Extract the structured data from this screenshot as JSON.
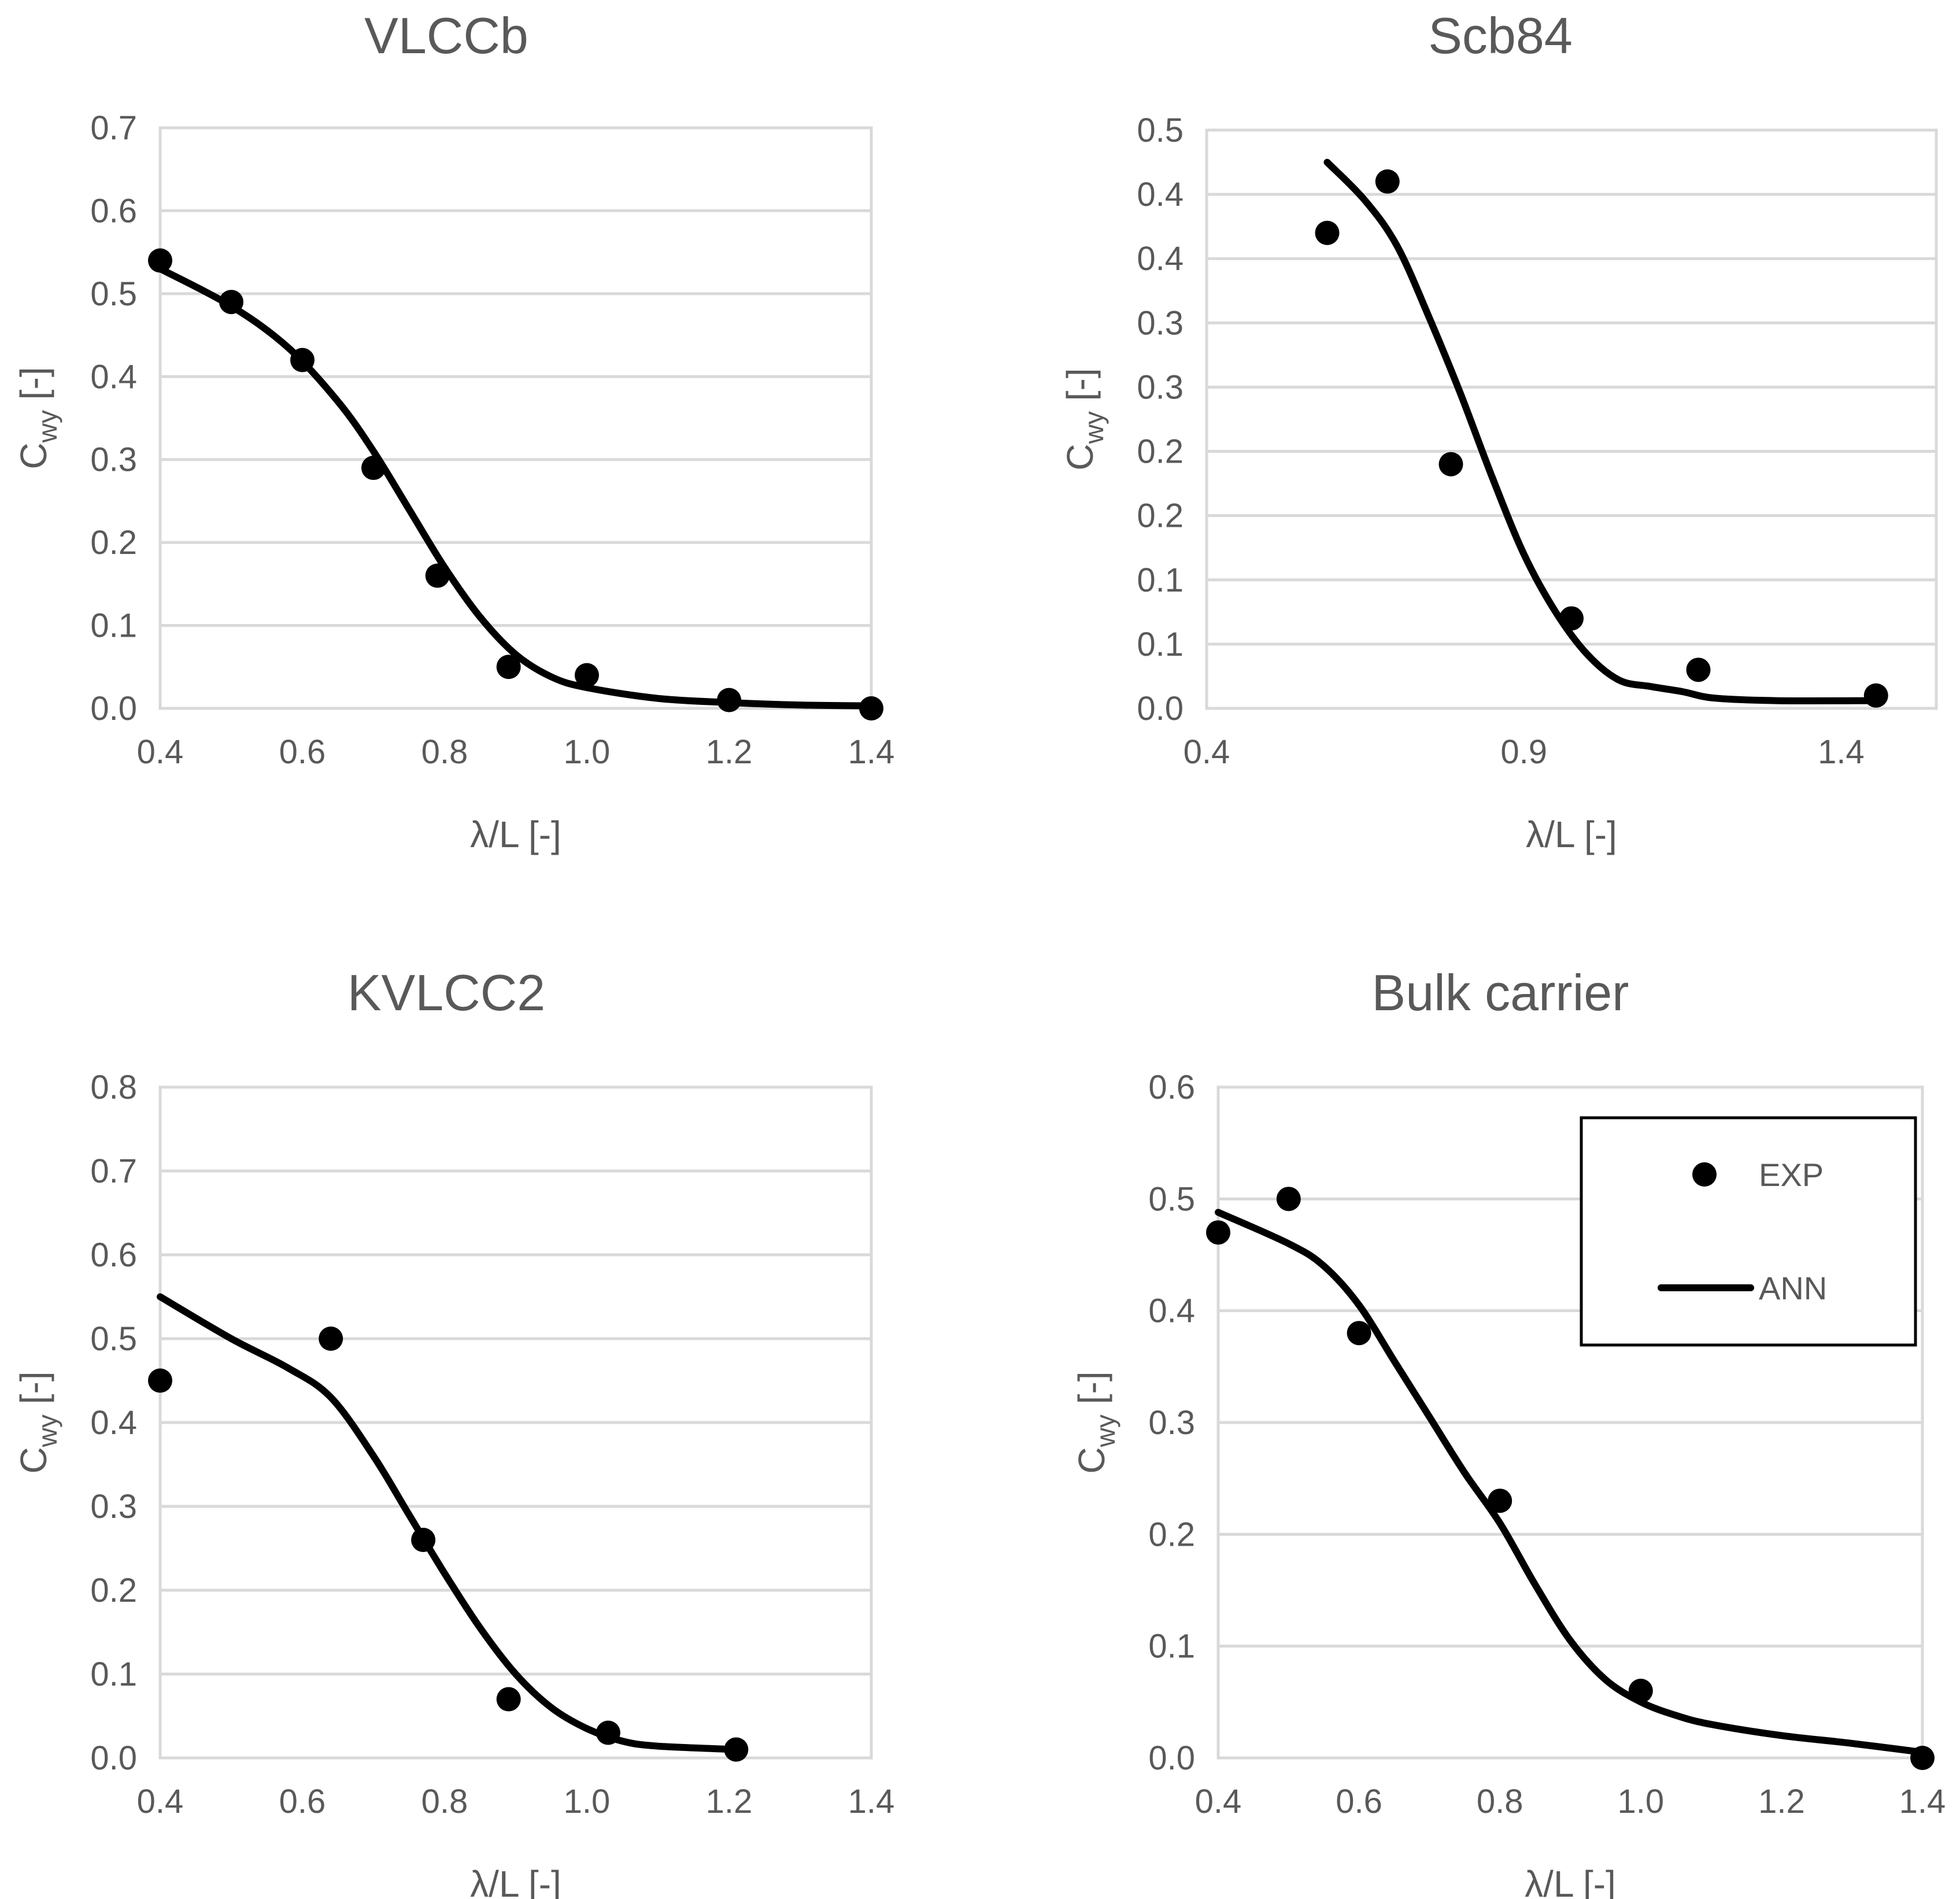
{
  "legend": {
    "exp_label": "EXP",
    "ann_label": "ANN"
  },
  "chart_data": [
    {
      "type": "scatter",
      "title": "VLCCb",
      "xlabel": "λ/L [-]",
      "ylabel_main": "C",
      "ylabel_sub": "wy",
      "ylabel_unit": " [-]",
      "xlim": [
        0.4,
        1.4
      ],
      "ylim": [
        0.0,
        0.7
      ],
      "xticks": [
        0.4,
        0.6,
        0.8,
        1.0,
        1.2,
        1.4
      ],
      "xtick_labels": [
        "0.4",
        "0.6",
        "0.8",
        "1.0",
        "1.2",
        "1.4"
      ],
      "yticks": [
        0.0,
        0.1,
        0.2,
        0.3,
        0.4,
        0.5,
        0.6,
        0.7
      ],
      "ytick_labels": [
        "0.0",
        "0.1",
        "0.2",
        "0.3",
        "0.4",
        "0.5",
        "0.6",
        "0.7"
      ],
      "series": [
        {
          "name": "EXP",
          "x": [
            0.4,
            0.5,
            0.6,
            0.7,
            0.79,
            0.89,
            1.0,
            1.2,
            1.4
          ],
          "y": [
            0.54,
            0.49,
            0.42,
            0.29,
            0.16,
            0.05,
            0.04,
            0.01,
            0.0
          ]
        },
        {
          "name": "ANN",
          "x": [
            0.4,
            0.5,
            0.58,
            0.65,
            0.7,
            0.75,
            0.8,
            0.85,
            0.9,
            0.95,
            1.0,
            1.1,
            1.2,
            1.3,
            1.4
          ],
          "y": [
            0.53,
            0.485,
            0.435,
            0.37,
            0.31,
            0.24,
            0.17,
            0.11,
            0.065,
            0.038,
            0.025,
            0.012,
            0.007,
            0.004,
            0.003
          ]
        }
      ]
    },
    {
      "type": "scatter",
      "title": "Scb84",
      "xlabel": "λ/L [-]",
      "ylabel_main": "C",
      "ylabel_sub": "wy",
      "ylabel_unit": " [-]",
      "xlim": [
        0.4,
        1.55
      ],
      "ylim": [
        0.0,
        0.45
      ],
      "xticks": [
        0.4,
        0.9,
        1.4
      ],
      "xtick_labels": [
        "0.4",
        "0.9",
        "1.4"
      ],
      "yticks": [
        0.0,
        0.05,
        0.1,
        0.15,
        0.2,
        0.25,
        0.3,
        0.35,
        0.4,
        0.45
      ],
      "ytick_labels": [
        "0.0",
        "0.1",
        "0.1",
        "0.2",
        "0.2",
        "0.3",
        "0.3",
        "0.4",
        "0.4",
        "0.5"
      ],
      "series": [
        {
          "name": "EXP",
          "x": [
            0.59,
            0.685,
            0.785,
            0.975,
            1.175,
            1.455
          ],
          "y": [
            0.37,
            0.41,
            0.19,
            0.07,
            0.03,
            0.01
          ]
        },
        {
          "name": "ANN",
          "x": [
            0.59,
            0.65,
            0.7,
            0.75,
            0.8,
            0.85,
            0.9,
            0.95,
            1.0,
            1.05,
            1.1,
            1.15,
            1.2,
            1.3,
            1.455
          ],
          "y": [
            0.425,
            0.395,
            0.36,
            0.305,
            0.245,
            0.18,
            0.12,
            0.075,
            0.042,
            0.022,
            0.017,
            0.013,
            0.008,
            0.006,
            0.006
          ]
        }
      ]
    },
    {
      "type": "scatter",
      "title": "KVLCC2",
      "xlabel": "λ/L [-]",
      "ylabel_main": "C",
      "ylabel_sub": "wy",
      "ylabel_unit": " [-]",
      "xlim": [
        0.4,
        1.4
      ],
      "ylim": [
        0.0,
        0.8
      ],
      "xticks": [
        0.4,
        0.6,
        0.8,
        1.0,
        1.2,
        1.4
      ],
      "xtick_labels": [
        "0.4",
        "0.6",
        "0.8",
        "1.0",
        "1.2",
        "1.4"
      ],
      "yticks": [
        0.0,
        0.1,
        0.2,
        0.3,
        0.4,
        0.5,
        0.6,
        0.7,
        0.8
      ],
      "ytick_labels": [
        "0.0",
        "0.1",
        "0.2",
        "0.3",
        "0.4",
        "0.5",
        "0.6",
        "0.7",
        "0.8"
      ],
      "series": [
        {
          "name": "EXP",
          "x": [
            0.4,
            0.64,
            0.77,
            0.89,
            1.03,
            1.21
          ],
          "y": [
            0.45,
            0.5,
            0.26,
            0.07,
            0.03,
            0.01
          ]
        },
        {
          "name": "ANN",
          "x": [
            0.4,
            0.5,
            0.58,
            0.64,
            0.7,
            0.75,
            0.8,
            0.85,
            0.9,
            0.95,
            1.0,
            1.05,
            1.1,
            1.21
          ],
          "y": [
            0.55,
            0.5,
            0.465,
            0.43,
            0.36,
            0.29,
            0.22,
            0.155,
            0.1,
            0.06,
            0.035,
            0.02,
            0.014,
            0.01
          ]
        }
      ]
    },
    {
      "type": "scatter",
      "title": "Bulk carrier",
      "xlabel": "λ/L [-]",
      "ylabel_main": "C",
      "ylabel_sub": "wy",
      "ylabel_unit": " [-]",
      "xlim": [
        0.4,
        1.4
      ],
      "ylim": [
        0.0,
        0.6
      ],
      "xticks": [
        0.4,
        0.6,
        0.8,
        1.0,
        1.2,
        1.4
      ],
      "xtick_labels": [
        "0.4",
        "0.6",
        "0.8",
        "1.0",
        "1.2",
        "1.4"
      ],
      "yticks": [
        0.0,
        0.1,
        0.2,
        0.3,
        0.4,
        0.5,
        0.6
      ],
      "ytick_labels": [
        "0.0",
        "0.1",
        "0.2",
        "0.3",
        "0.4",
        "0.5",
        "0.6"
      ],
      "legend_position": "top-right",
      "series": [
        {
          "name": "EXP",
          "x": [
            0.4,
            0.5,
            0.6,
            0.8,
            1.0,
            1.4
          ],
          "y": [
            0.47,
            0.5,
            0.38,
            0.23,
            0.06,
            0.0
          ]
        },
        {
          "name": "ANN",
          "x": [
            0.4,
            0.5,
            0.55,
            0.6,
            0.65,
            0.7,
            0.75,
            0.8,
            0.85,
            0.9,
            0.95,
            1.0,
            1.05,
            1.1,
            1.2,
            1.3,
            1.4
          ],
          "y": [
            0.488,
            0.46,
            0.44,
            0.405,
            0.355,
            0.305,
            0.255,
            0.21,
            0.155,
            0.105,
            0.07,
            0.05,
            0.038,
            0.03,
            0.02,
            0.013,
            0.005
          ]
        }
      ]
    }
  ]
}
